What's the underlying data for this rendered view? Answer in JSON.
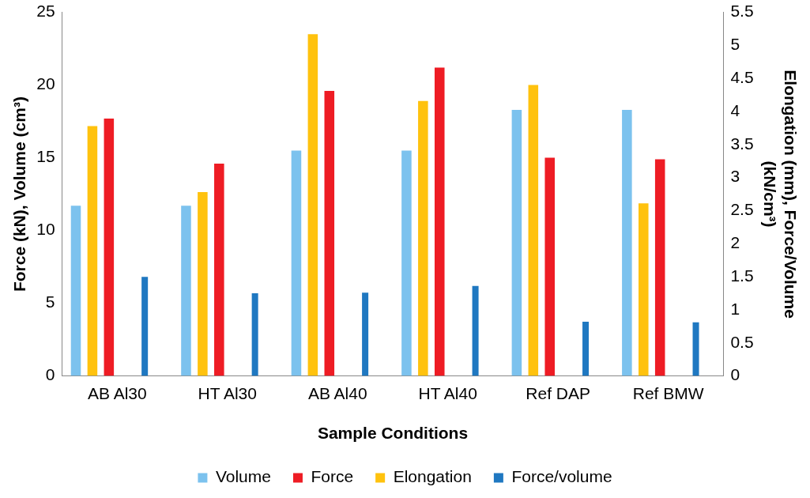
{
  "chart_data": {
    "type": "bar",
    "xlabel": "Sample Conditions",
    "ylabel": "Force (kN), Volume (cm³)",
    "y2label": "Elongation (mm), Force/Volume (kN/cm³)",
    "categories": [
      "AB Al30",
      "HT Al30",
      "AB Al40",
      "HT Al40",
      "Ref DAP",
      "Ref BMW"
    ],
    "series": [
      {
        "name": "Volume",
        "color": "#7cc2ee",
        "values": [
          11.7,
          11.7,
          15.5,
          15.5,
          18.3,
          18.3
        ]
      },
      {
        "name": "Force",
        "color": "#ee1c24",
        "values": [
          17.7,
          14.6,
          19.6,
          21.2,
          15.0,
          14.9
        ]
      },
      {
        "name": "Elongation",
        "color": "#ffc20e",
        "axis": "y2",
        "values": [
          3.78,
          2.78,
          5.17,
          4.16,
          4.4,
          2.61
        ]
      },
      {
        "name": "Force/volume",
        "color": "#1f78c1",
        "axis": "y2",
        "values": [
          1.5,
          1.25,
          1.26,
          1.36,
          0.82,
          0.81
        ]
      }
    ],
    "ylim": [
      0,
      25
    ],
    "yticks": [
      0,
      5,
      10,
      15,
      20,
      25
    ],
    "y2lim": [
      0,
      5.5
    ],
    "y2ticks": [
      0,
      0.5,
      1,
      1.5,
      2,
      2.5,
      3,
      3.5,
      4,
      4.5,
      5,
      5.5
    ],
    "grid": false,
    "legend": "bottom"
  }
}
